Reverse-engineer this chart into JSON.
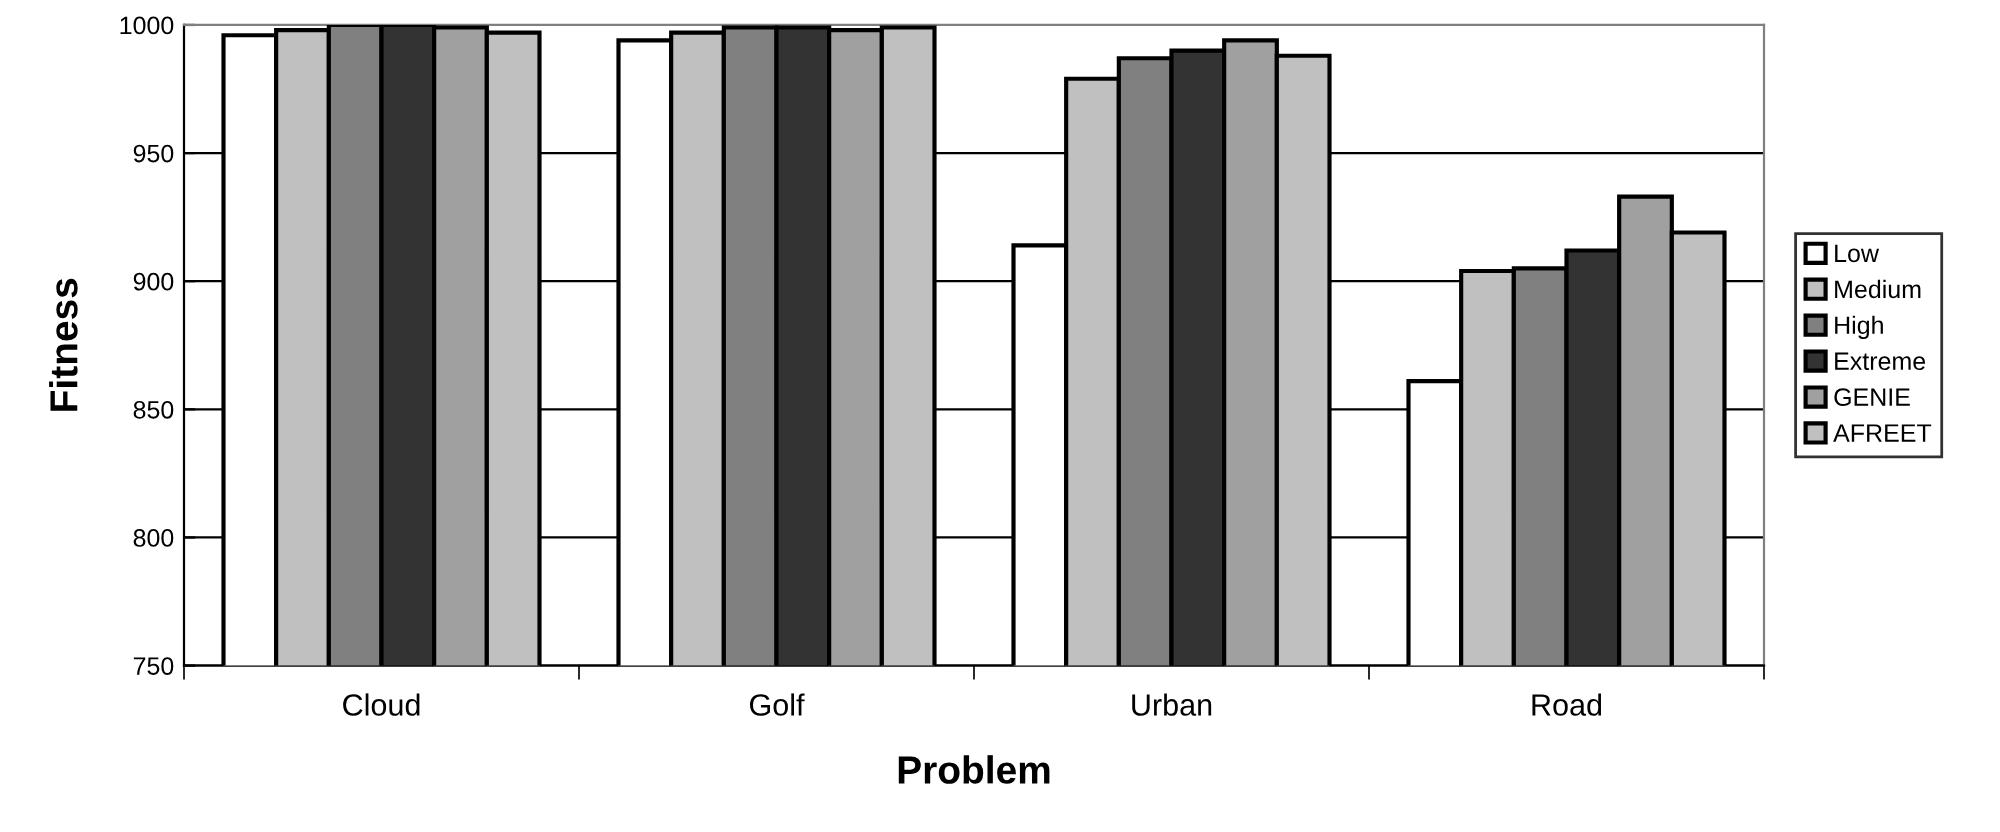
{
  "chart_data": {
    "type": "bar",
    "xlabel": "Problem",
    "ylabel": "Fitness",
    "categories": [
      "Cloud",
      "Golf",
      "Urban",
      "Road"
    ],
    "series": [
      {
        "name": "Low",
        "color": "#ffffff",
        "values": [
          996,
          994,
          914,
          861
        ]
      },
      {
        "name": "Medium",
        "color": "#c0c0c0",
        "values": [
          998,
          997,
          979,
          904
        ]
      },
      {
        "name": "High",
        "color": "#808080",
        "values": [
          1000,
          999,
          987,
          905
        ]
      },
      {
        "name": "Extreme",
        "color": "#333333",
        "values": [
          1000,
          999,
          990,
          912
        ]
      },
      {
        "name": "GENIE",
        "color": "#a0a0a0",
        "values": [
          999,
          998,
          994,
          933
        ]
      },
      {
        "name": "AFREET",
        "color": "#c0c0c0",
        "values": [
          997,
          999,
          988,
          919
        ]
      }
    ],
    "ylim": [
      750,
      1000
    ],
    "yticks": [
      750,
      800,
      850,
      900,
      950,
      1000
    ],
    "grid": "y",
    "legend": "right"
  }
}
